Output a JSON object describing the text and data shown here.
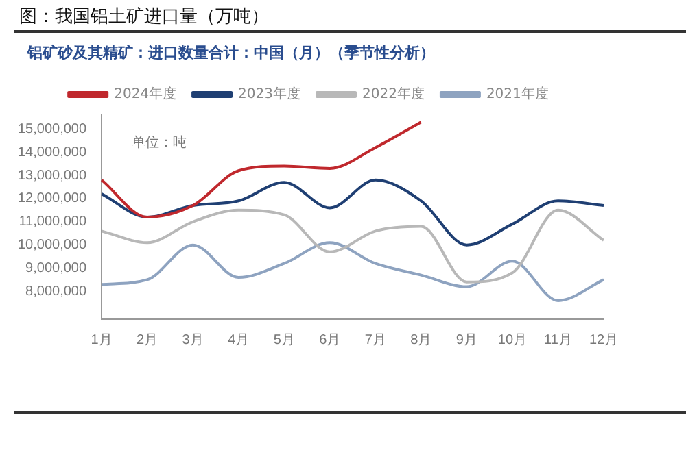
{
  "chart_data": {
    "type": "line",
    "title": "图：我国铝土矿进口量（万吨）",
    "subtitle": "铝矿砂及其精矿：进口数量合计：中国（月）（季节性分析）",
    "ylabel": "单位：吨",
    "categories": [
      "1月",
      "2月",
      "3月",
      "4月",
      "5月",
      "6月",
      "7月",
      "8月",
      "9月",
      "10月",
      "11月",
      "12月"
    ],
    "series": [
      {
        "name": "2024年度",
        "color": "#c0282d",
        "values": [
          12800000,
          11200000,
          11700000,
          13200000,
          13400000,
          13300000,
          14200000,
          15300000,
          null,
          null,
          null,
          null
        ]
      },
      {
        "name": "2023年度",
        "color": "#1f3f73",
        "values": [
          12200000,
          11200000,
          11700000,
          11900000,
          12700000,
          11600000,
          12800000,
          11900000,
          10000000,
          10900000,
          11900000,
          11700000
        ]
      },
      {
        "name": "2022年度",
        "color": "#b8b8b8",
        "values": [
          10600000,
          10100000,
          11000000,
          11500000,
          11300000,
          9700000,
          10600000,
          10800000,
          8400000,
          8800000,
          11500000,
          10200000
        ]
      },
      {
        "name": "2021年度",
        "color": "#8ea3c0",
        "values": [
          8300000,
          8500000,
          10000000,
          8600000,
          9200000,
          10100000,
          9200000,
          8700000,
          8200000,
          9300000,
          7600000,
          8500000
        ]
      }
    ],
    "ylim": [
      6800000,
      15600000
    ],
    "yticks": [
      {
        "value": 8000000,
        "label": "8,000,000"
      },
      {
        "value": 9000000,
        "label": "9,000,000"
      },
      {
        "value": 10000000,
        "label": "10,000,000"
      },
      {
        "value": 11000000,
        "label": "11,000,000"
      },
      {
        "value": 12000000,
        "label": "12,000,000"
      },
      {
        "value": 13000000,
        "label": "13,000,000"
      },
      {
        "value": 14000000,
        "label": "14,000,000"
      },
      {
        "value": 15000000,
        "label": "15,000,000"
      }
    ],
    "grid": false,
    "legend": "top",
    "marker": "none",
    "line_style": "solid"
  }
}
